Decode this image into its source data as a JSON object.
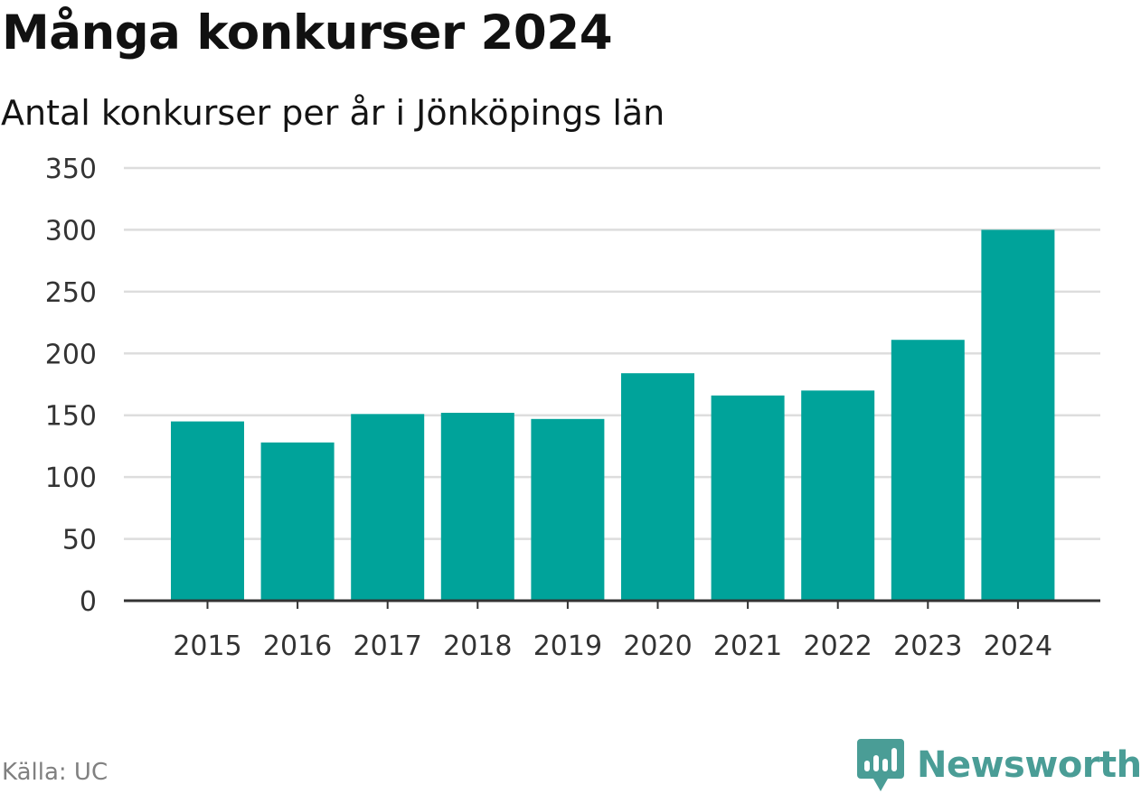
{
  "header": {
    "title": "Många konkurser 2024",
    "subtitle": "Antal konkurser per år i Jönköpings län"
  },
  "footer": {
    "source": "Källa: UC",
    "brand": "Newsworthy",
    "brand_icon": "newsworthy-logo-icon"
  },
  "colors": {
    "bar": "#00a39a",
    "grid": "#dddddd",
    "axis": "#333333",
    "brand": "#4a9d96"
  },
  "chart_data": {
    "type": "bar",
    "categories": [
      "2015",
      "2016",
      "2017",
      "2018",
      "2019",
      "2020",
      "2021",
      "2022",
      "2023",
      "2024"
    ],
    "values": [
      145,
      128,
      151,
      152,
      147,
      184,
      166,
      170,
      211,
      300
    ],
    "ylim": [
      0,
      350
    ],
    "yticks": [
      0,
      50,
      100,
      150,
      200,
      250,
      300,
      350
    ],
    "grid": true,
    "legend": "none"
  }
}
